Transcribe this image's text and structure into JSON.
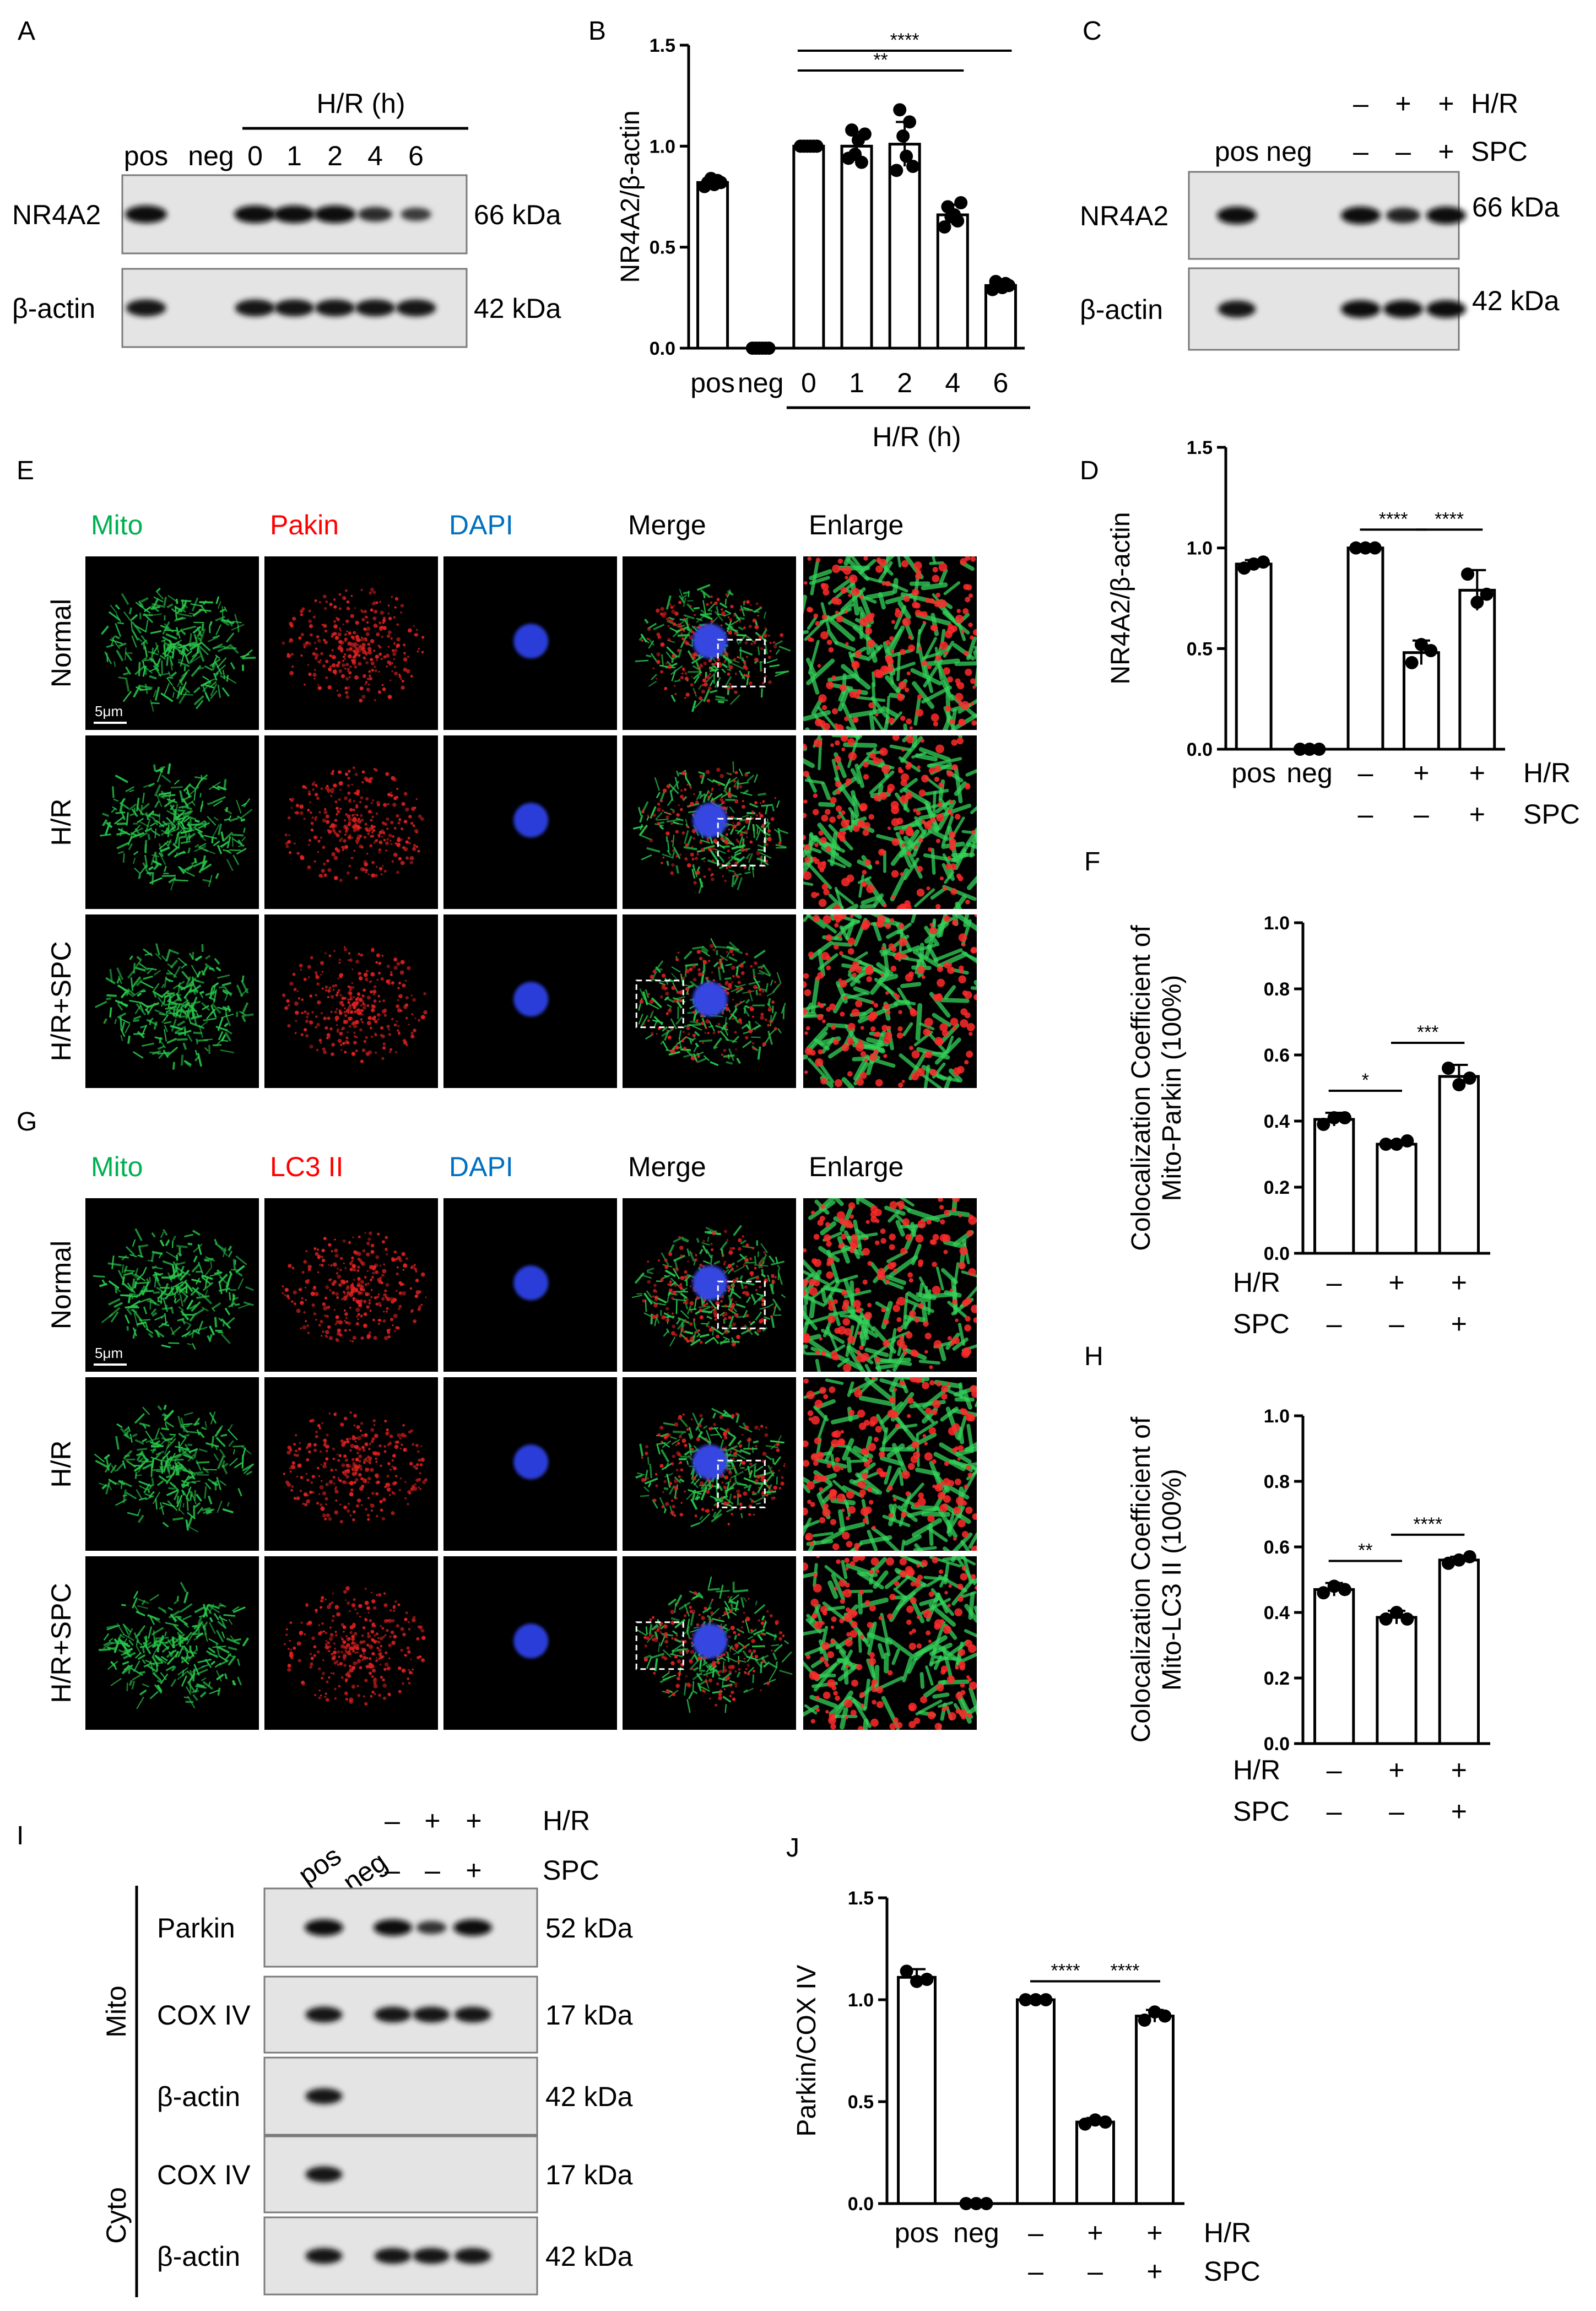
{
  "panels": {
    "A": {
      "letter": "A",
      "group_label": "H/R (h)",
      "lanes": [
        "pos",
        "neg",
        "0",
        "1",
        "2",
        "4",
        "6"
      ],
      "bands": [
        {
          "name": "NR4A2",
          "kda": "66 kDa",
          "intensity": [
            1.0,
            0,
            1.0,
            1.0,
            1.0,
            0.6,
            0.4
          ]
        },
        {
          "name": "β-actin",
          "kda": "42 kDa",
          "intensity": [
            0.9,
            0,
            0.9,
            0.9,
            0.9,
            0.9,
            0.9
          ]
        }
      ]
    },
    "C": {
      "letter": "C",
      "lane_labels": [
        "pos",
        "neg"
      ],
      "treatments": [
        {
          "name": "H/R",
          "signs": [
            "",
            "",
            "–",
            "+",
            "+"
          ]
        },
        {
          "name": "SPC",
          "signs": [
            "",
            "",
            "–",
            "–",
            "+"
          ]
        }
      ],
      "bands": [
        {
          "name": "NR4A2",
          "kda": "66 kDa",
          "intensity": [
            1.0,
            0,
            1.0,
            0.7,
            1.0
          ]
        },
        {
          "name": "β-actin",
          "kda": "42 kDa",
          "intensity": [
            0.9,
            0,
            1.0,
            1.0,
            1.0
          ]
        }
      ]
    },
    "E": {
      "letter": "E",
      "columns": [
        {
          "label": "Mito",
          "color": "#00b050"
        },
        {
          "label": "Pakin",
          "color": "#ff0000"
        },
        {
          "label": "DAPI",
          "color": "#0070c0"
        },
        {
          "label": "Merge",
          "color": "#000000"
        },
        {
          "label": "Enlarge",
          "color": "#000000"
        }
      ],
      "rows": [
        "Normal",
        "H/R",
        "H/R+SPC"
      ],
      "scale_bar": "5μm"
    },
    "G": {
      "letter": "G",
      "columns": [
        {
          "label": "Mito",
          "color": "#00b050"
        },
        {
          "label": "LC3 II",
          "color": "#ff0000"
        },
        {
          "label": "DAPI",
          "color": "#0070c0"
        },
        {
          "label": "Merge",
          "color": "#000000"
        },
        {
          "label": "Enlarge",
          "color": "#000000"
        }
      ],
      "rows": [
        "Normal",
        "H/R",
        "H/R+SPC"
      ],
      "scale_bar": "5μm"
    },
    "I": {
      "letter": "I",
      "lane_labels": [
        "pos",
        "neg"
      ],
      "treatments": [
        {
          "name": "H/R",
          "signs": [
            "",
            "",
            "–",
            "+",
            "+"
          ]
        },
        {
          "name": "SPC",
          "signs": [
            "",
            "",
            "–",
            "–",
            "+"
          ]
        }
      ],
      "fractions": [
        {
          "name": "Mito",
          "bands": [
            {
              "name": "Parkin",
              "kda": "52 kDa",
              "intensity": [
                1.0,
                0,
                1.0,
                0.5,
                1.0
              ]
            },
            {
              "name": "COX IV",
              "kda": "17 kDa",
              "intensity": [
                0.9,
                0,
                0.9,
                0.9,
                0.9
              ]
            },
            {
              "name": "β-actin",
              "kda": "42 kDa",
              "intensity": [
                0.9,
                0,
                0,
                0,
                0
              ]
            }
          ]
        },
        {
          "name": "Cyto",
          "bands": [
            {
              "name": "COX IV",
              "kda": "17 kDa",
              "intensity": [
                0.9,
                0,
                0,
                0,
                0
              ]
            },
            {
              "name": "β-actin",
              "kda": "42 kDa",
              "intensity": [
                0.9,
                0,
                0.9,
                0.9,
                0.9
              ]
            }
          ]
        }
      ]
    }
  },
  "chart_data": [
    {
      "panel": "B",
      "type": "bar",
      "letter": "B",
      "ylabel": "NR4A2/β-actin",
      "ylim": [
        0,
        1.5
      ],
      "yticks": [
        "0.0",
        "0.5",
        "1.0",
        "1.5"
      ],
      "categories": [
        "pos",
        "neg",
        "0",
        "1",
        "2",
        "4",
        "6"
      ],
      "values": [
        0.82,
        0.0,
        1.0,
        1.0,
        1.01,
        0.66,
        0.31
      ],
      "errors": [
        0.02,
        0.005,
        0.005,
        0.07,
        0.11,
        0.05,
        0.03
      ],
      "points": [
        [
          0.8,
          0.82,
          0.84,
          0.81,
          0.83,
          0.82
        ],
        [
          0.0,
          0.0,
          0.0,
          0.0,
          0.0,
          0.0
        ],
        [
          1.0,
          1.0,
          1.0,
          1.0,
          1.0,
          1.0
        ],
        [
          0.94,
          1.08,
          0.96,
          1.03,
          0.92,
          1.06
        ],
        [
          0.88,
          1.18,
          1.05,
          0.95,
          1.12,
          0.9
        ],
        [
          0.6,
          0.7,
          0.65,
          0.66,
          0.63,
          0.72
        ],
        [
          0.29,
          0.33,
          0.31,
          0.3,
          0.32,
          0.31
        ]
      ],
      "significance": [
        {
          "from": 2,
          "to": 6,
          "label": "****"
        },
        {
          "from": 2,
          "to": 5,
          "label": "**"
        }
      ],
      "group_label": "H/R (h)"
    },
    {
      "panel": "D",
      "type": "bar",
      "letter": "D",
      "ylabel": "NR4A2/β-actin",
      "ylim": [
        0,
        1.5
      ],
      "yticks": [
        "0.0",
        "0.5",
        "1.0",
        "1.5"
      ],
      "categories": [
        "pos",
        "neg",
        "",
        "",
        ""
      ],
      "values": [
        0.92,
        0.0,
        1.0,
        0.48,
        0.79
      ],
      "errors": [
        0.02,
        0.005,
        0.005,
        0.06,
        0.1
      ],
      "points": [
        [
          0.9,
          0.92,
          0.93
        ],
        [
          0.0,
          0.0,
          0.0
        ],
        [
          1.0,
          1.0,
          1.0
        ],
        [
          0.43,
          0.52,
          0.49
        ],
        [
          0.87,
          0.73,
          0.77
        ]
      ],
      "treatments": [
        {
          "name": "H/R",
          "signs": [
            "",
            "",
            "–",
            "+",
            "+"
          ]
        },
        {
          "name": "SPC",
          "signs": [
            "",
            "",
            "–",
            "–",
            "+"
          ]
        }
      ],
      "significance": [
        {
          "from": 2,
          "to": 3,
          "label": "****"
        },
        {
          "from": 3,
          "to": 4,
          "label": "****"
        }
      ]
    },
    {
      "panel": "F",
      "type": "bar",
      "letter": "F",
      "ylabel": "Colocalization Coefficient of Mito-Parkin (100%)",
      "ylabel_lines": [
        "Colocalization Coefficient of",
        "Mito-Parkin (100%)"
      ],
      "ylim": [
        0,
        1.0
      ],
      "yticks": [
        "0.0",
        "0.2",
        "0.4",
        "0.6",
        "0.8",
        "1.0"
      ],
      "categories": [
        "",
        "",
        ""
      ],
      "values": [
        0.405,
        0.33,
        0.535
      ],
      "errors": [
        0.02,
        0.01,
        0.035
      ],
      "points": [
        [
          0.39,
          0.41,
          0.41
        ],
        [
          0.33,
          0.33,
          0.34
        ],
        [
          0.56,
          0.51,
          0.53
        ]
      ],
      "treatments": [
        {
          "name": "H/R",
          "signs": [
            "–",
            "+",
            "+"
          ]
        },
        {
          "name": "SPC",
          "signs": [
            "–",
            "–",
            "+"
          ]
        }
      ],
      "significance": [
        {
          "from": 0,
          "to": 1,
          "label": "*"
        },
        {
          "from": 1,
          "to": 2,
          "label": "***"
        }
      ]
    },
    {
      "panel": "H",
      "type": "bar",
      "letter": "H",
      "ylabel": "Colocalization Coefficient of Mito-LC3 II (100%)",
      "ylabel_lines": [
        "Colocalization Coefficient of",
        "Mito-LC3 II (100%)"
      ],
      "ylim": [
        0,
        1.0
      ],
      "yticks": [
        "0.0",
        "0.2",
        "0.4",
        "0.6",
        "0.8",
        "1.0"
      ],
      "categories": [
        "",
        "",
        ""
      ],
      "values": [
        0.47,
        0.385,
        0.56
      ],
      "errors": [
        0.02,
        0.02,
        0.01
      ],
      "points": [
        [
          0.46,
          0.48,
          0.47
        ],
        [
          0.38,
          0.4,
          0.38
        ],
        [
          0.55,
          0.56,
          0.57
        ]
      ],
      "treatments": [
        {
          "name": "H/R",
          "signs": [
            "–",
            "+",
            "+"
          ]
        },
        {
          "name": "SPC",
          "signs": [
            "–",
            "–",
            "+"
          ]
        }
      ],
      "significance": [
        {
          "from": 0,
          "to": 1,
          "label": "**"
        },
        {
          "from": 1,
          "to": 2,
          "label": "****"
        }
      ]
    },
    {
      "panel": "J",
      "type": "bar",
      "letter": "J",
      "ylabel": "Parkin/COX IV",
      "ylim": [
        0,
        1.5
      ],
      "yticks": [
        "0.0",
        "0.5",
        "1.0",
        "1.5"
      ],
      "categories": [
        "pos",
        "neg",
        "",
        "",
        ""
      ],
      "values": [
        1.11,
        0.0,
        1.0,
        0.4,
        0.92
      ],
      "errors": [
        0.04,
        0.005,
        0.005,
        0.02,
        0.03
      ],
      "points": [
        [
          1.14,
          1.09,
          1.1
        ],
        [
          0.0,
          0.0,
          0.0
        ],
        [
          1.0,
          1.0,
          1.0
        ],
        [
          0.39,
          0.41,
          0.4
        ],
        [
          0.9,
          0.94,
          0.92
        ]
      ],
      "treatments": [
        {
          "name": "H/R",
          "signs": [
            "",
            "",
            "–",
            "+",
            "+"
          ]
        },
        {
          "name": "SPC",
          "signs": [
            "",
            "",
            "–",
            "–",
            "+"
          ]
        }
      ],
      "significance": [
        {
          "from": 2,
          "to": 3,
          "label": "****"
        },
        {
          "from": 3,
          "to": 4,
          "label": "****"
        }
      ]
    }
  ]
}
